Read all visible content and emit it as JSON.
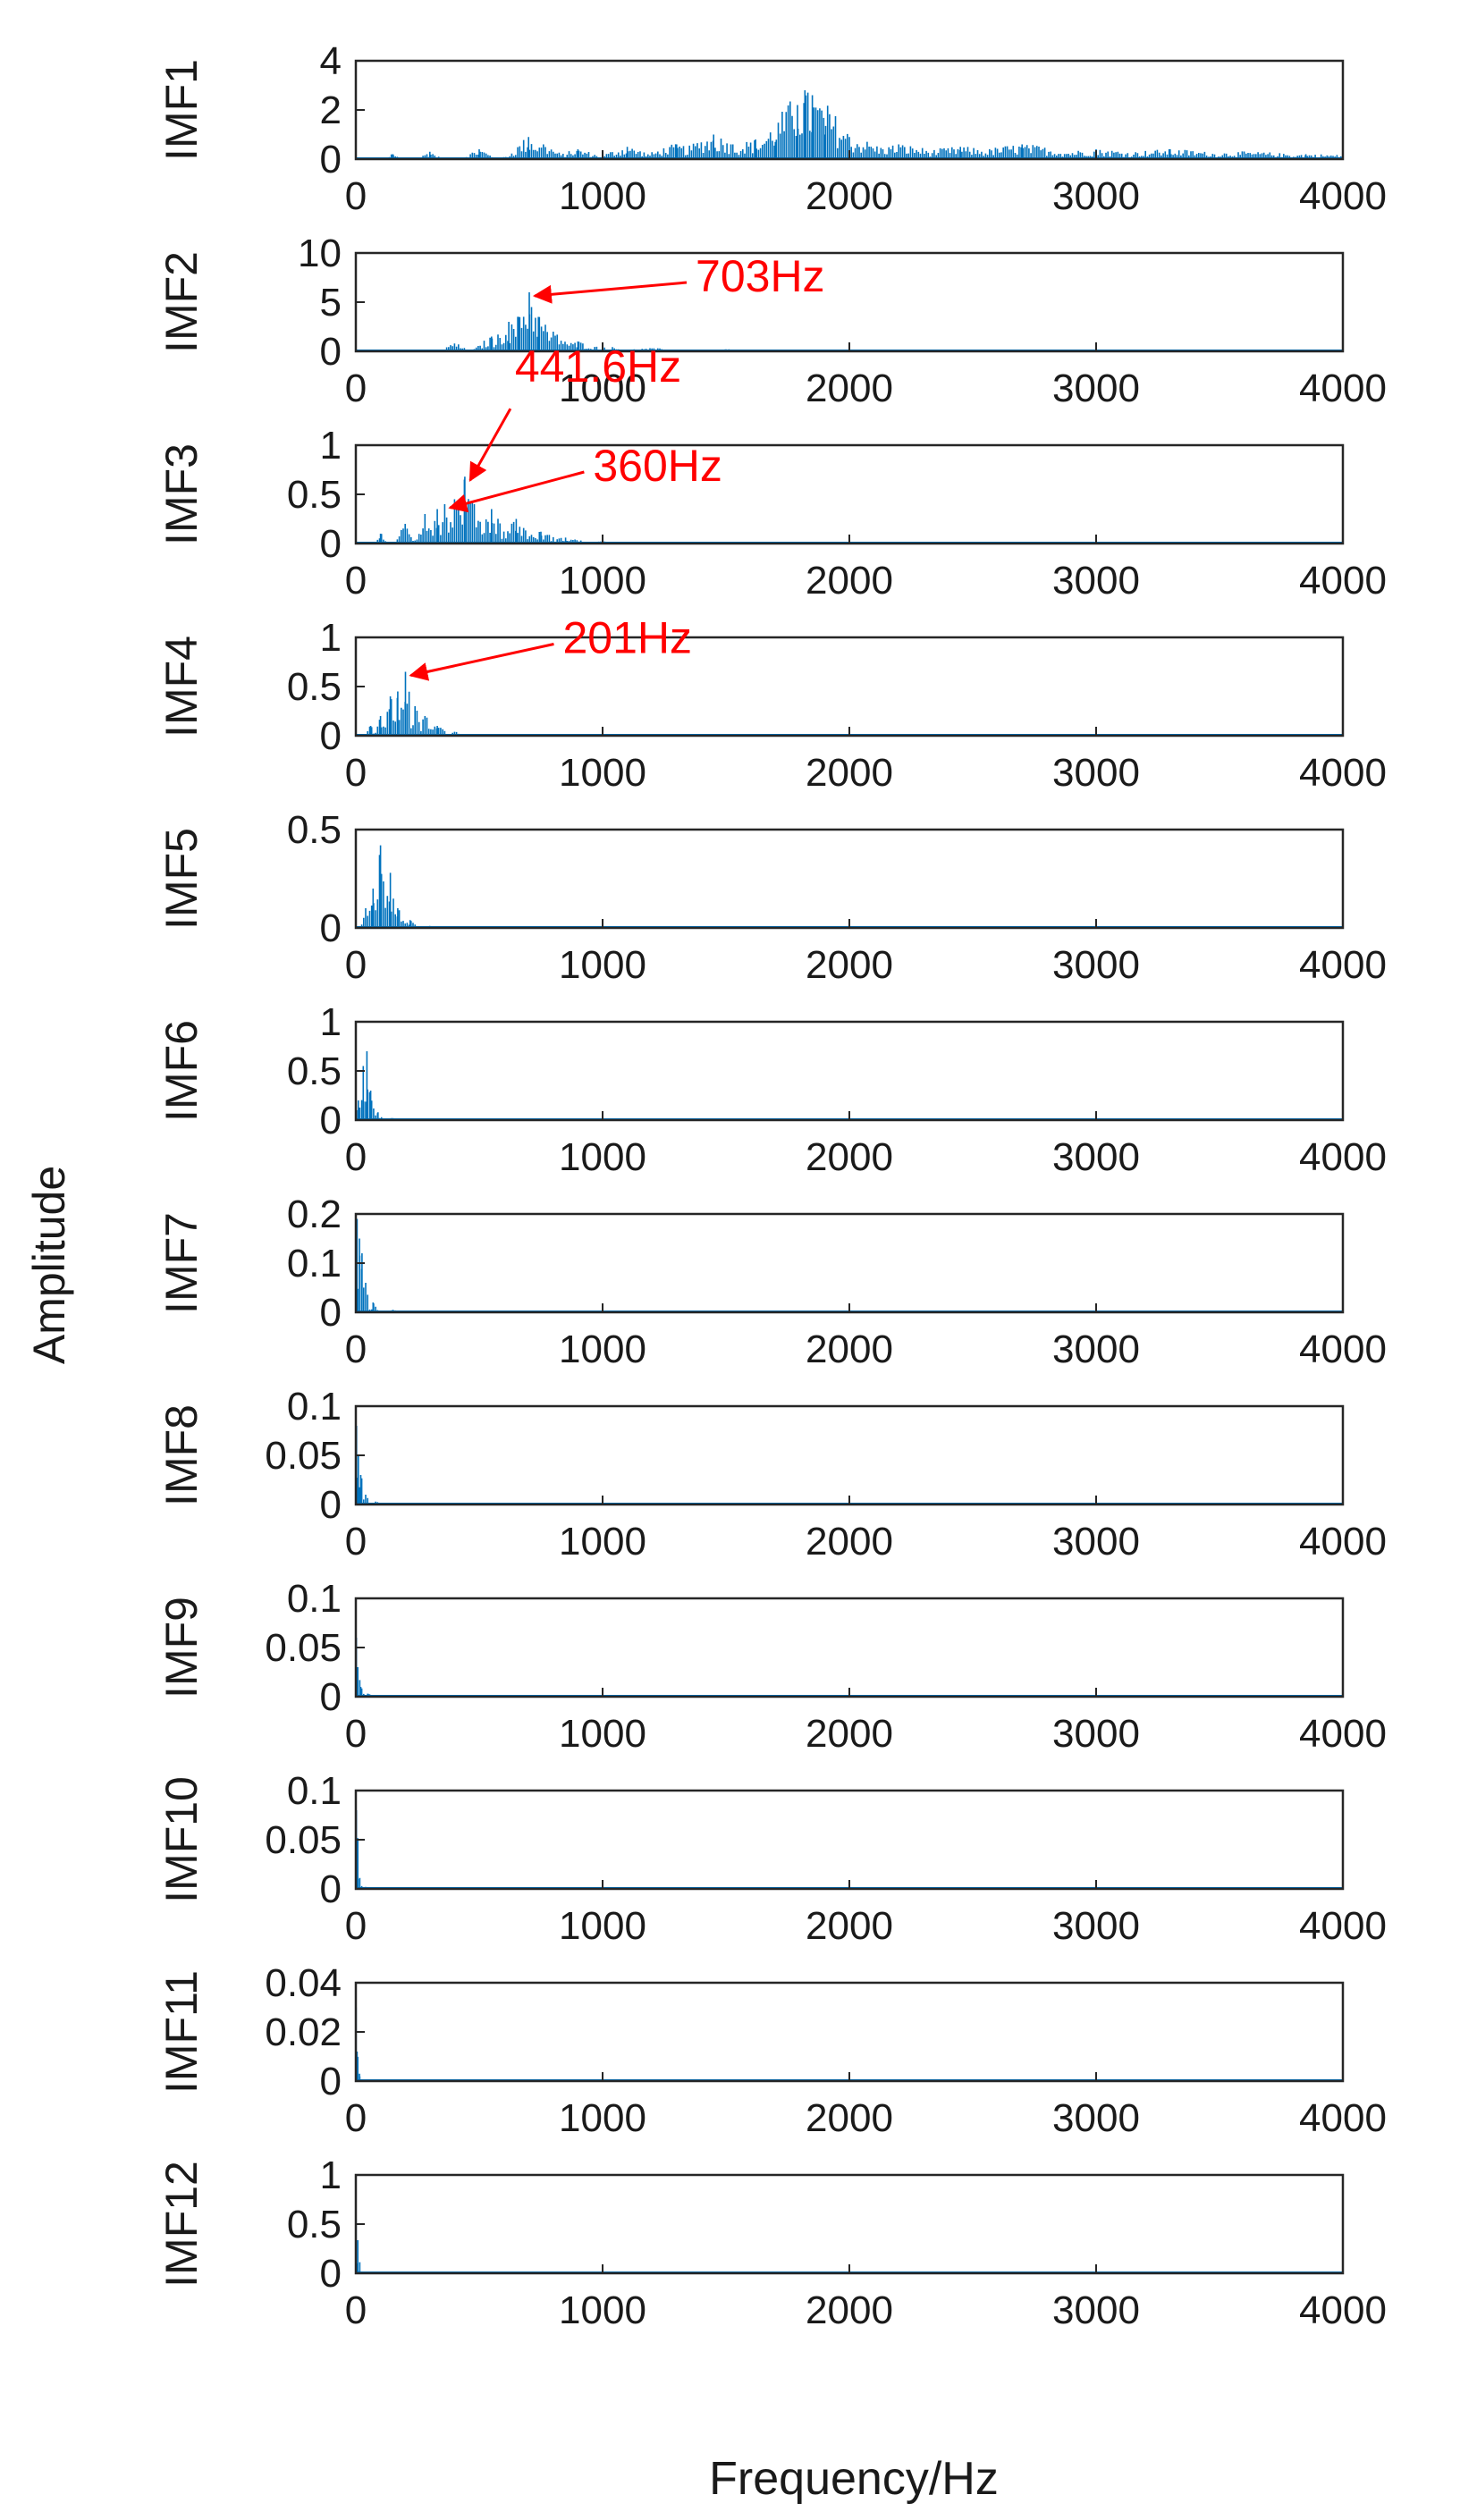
{
  "chart_data": {
    "type": "line",
    "xlabel": "Frequency/Hz",
    "ylabel": "Amplitude",
    "xlim": [
      0,
      4000
    ],
    "xticks": [
      "0",
      "1000",
      "2000",
      "3000",
      "4000"
    ],
    "line_color": "#0072BD",
    "annotation_color": "#FF0000",
    "grid": false,
    "panels": [
      {
        "name": "IMF1",
        "ylim": [
          0,
          4
        ],
        "yticks": [
          "0",
          "2",
          "4"
        ],
        "peaks": [
          [
            150,
            0.2
          ],
          [
            300,
            0.3
          ],
          [
            500,
            0.4
          ],
          [
            700,
            0.9
          ],
          [
            760,
            0.6
          ],
          [
            900,
            0.4
          ],
          [
            1100,
            0.5
          ],
          [
            1300,
            0.6
          ],
          [
            1450,
            1.0
          ],
          [
            1520,
            0.6
          ],
          [
            1620,
            0.8
          ],
          [
            1700,
            0.7
          ],
          [
            1790,
            2.2
          ],
          [
            1820,
            2.8
          ],
          [
            1850,
            2.6
          ],
          [
            1900,
            1.0
          ],
          [
            2000,
            0.9
          ],
          [
            2200,
            0.6
          ],
          [
            2450,
            0.5
          ],
          [
            2700,
            0.6
          ],
          [
            3000,
            0.4
          ],
          [
            3300,
            0.4
          ],
          [
            3600,
            0.3
          ],
          [
            3850,
            0.2
          ]
        ]
      },
      {
        "name": "IMF2",
        "ylim": [
          0,
          10
        ],
        "yticks": [
          "0",
          "5",
          "10"
        ],
        "peaks": [
          [
            400,
            0.8
          ],
          [
            550,
            1.5
          ],
          [
            620,
            3.0
          ],
          [
            660,
            3.5
          ],
          [
            703,
            6.0
          ],
          [
            740,
            3.5
          ],
          [
            800,
            2.0
          ],
          [
            900,
            1.0
          ],
          [
            1000,
            0.5
          ],
          [
            1200,
            0.3
          ],
          [
            1500,
            0.2
          ],
          [
            1800,
            0.15
          ]
        ]
      },
      {
        "name": "IMF3",
        "ylim": [
          0,
          1
        ],
        "yticks": [
          "0",
          "0.5",
          "1"
        ],
        "peaks": [
          [
            100,
            0.1
          ],
          [
            200,
            0.2
          ],
          [
            280,
            0.3
          ],
          [
            330,
            0.35
          ],
          [
            360,
            0.4
          ],
          [
            400,
            0.45
          ],
          [
            441.6,
            0.68
          ],
          [
            480,
            0.4
          ],
          [
            550,
            0.35
          ],
          [
            650,
            0.25
          ],
          [
            750,
            0.12
          ],
          [
            850,
            0.06
          ],
          [
            1000,
            0.02
          ]
        ]
      },
      {
        "name": "IMF4",
        "ylim": [
          0,
          1
        ],
        "yticks": [
          "0",
          "0.5",
          "1"
        ],
        "peaks": [
          [
            60,
            0.1
          ],
          [
            100,
            0.2
          ],
          [
            140,
            0.4
          ],
          [
            170,
            0.45
          ],
          [
            201,
            0.65
          ],
          [
            240,
            0.3
          ],
          [
            280,
            0.2
          ],
          [
            330,
            0.1
          ],
          [
            400,
            0.04
          ]
        ]
      },
      {
        "name": "IMF5",
        "ylim": [
          0,
          0.5
        ],
        "yticks": [
          "0",
          "0.5"
        ],
        "peaks": [
          [
            40,
            0.1
          ],
          [
            70,
            0.2
          ],
          [
            100,
            0.42
          ],
          [
            140,
            0.28
          ],
          [
            170,
            0.1
          ],
          [
            220,
            0.04
          ],
          [
            300,
            0.01
          ]
        ]
      },
      {
        "name": "IMF6",
        "ylim": [
          0,
          1
        ],
        "yticks": [
          "0",
          "0.5",
          "1"
        ],
        "peaks": [
          [
            10,
            0.2
          ],
          [
            30,
            0.55
          ],
          [
            45,
            0.7
          ],
          [
            60,
            0.3
          ],
          [
            90,
            0.08
          ],
          [
            150,
            0.02
          ]
        ]
      },
      {
        "name": "IMF7",
        "ylim": [
          0,
          0.2
        ],
        "yticks": [
          "0",
          "0.1",
          "0.2"
        ],
        "peaks": [
          [
            5,
            0.19
          ],
          [
            15,
            0.15
          ],
          [
            25,
            0.12
          ],
          [
            40,
            0.06
          ],
          [
            70,
            0.02
          ],
          [
            150,
            0.005
          ]
        ]
      },
      {
        "name": "IMF8",
        "ylim": [
          0,
          0.1
        ],
        "yticks": [
          "0",
          "0.05",
          "0.1"
        ],
        "peaks": [
          [
            3,
            0.08
          ],
          [
            10,
            0.05
          ],
          [
            20,
            0.03
          ],
          [
            40,
            0.01
          ],
          [
            80,
            0.003
          ]
        ]
      },
      {
        "name": "IMF9",
        "ylim": [
          0,
          0.1
        ],
        "yticks": [
          "0",
          "0.05",
          "0.1"
        ],
        "peaks": [
          [
            2,
            0.06
          ],
          [
            8,
            0.03
          ],
          [
            20,
            0.01
          ],
          [
            50,
            0.003
          ]
        ]
      },
      {
        "name": "IMF10",
        "ylim": [
          0,
          0.1
        ],
        "yticks": [
          "0",
          "0.05",
          "0.1"
        ],
        "peaks": [
          [
            2,
            0.08
          ],
          [
            6,
            0.03
          ],
          [
            15,
            0.01
          ],
          [
            40,
            0.002
          ]
        ]
      },
      {
        "name": "IMF11",
        "ylim": [
          0,
          0.04
        ],
        "yticks": [
          "0",
          "0.02",
          "0.04"
        ],
        "peaks": [
          [
            1,
            0.03
          ],
          [
            5,
            0.012
          ],
          [
            15,
            0.003
          ]
        ]
      },
      {
        "name": "IMF12",
        "ylim": [
          0,
          1
        ],
        "yticks": [
          "0",
          "0.5",
          "1"
        ],
        "peaks": [
          [
            1,
            0.55
          ],
          [
            4,
            0.1
          ],
          [
            10,
            0.02
          ]
        ]
      }
    ],
    "annotations": [
      {
        "panel": 1,
        "text": "703Hz",
        "x": 703,
        "y": 6.0
      },
      {
        "panel": 2,
        "text": "441.6Hz",
        "x": 441.6,
        "y": 0.68
      },
      {
        "panel": 2,
        "text": "360Hz",
        "x": 360,
        "y": 0.4
      },
      {
        "panel": 3,
        "text": "201Hz",
        "x": 201,
        "y": 0.65
      }
    ]
  }
}
